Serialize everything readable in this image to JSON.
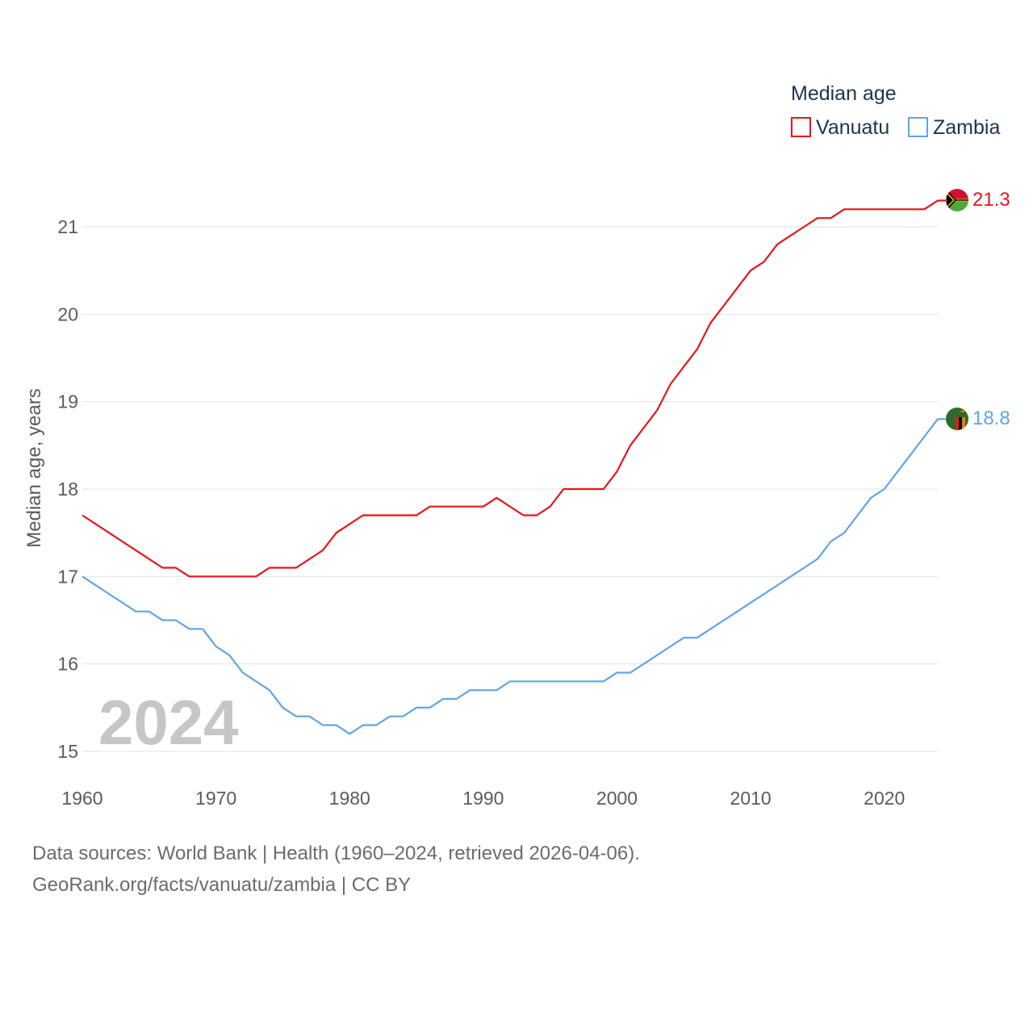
{
  "chart_data": {
    "type": "line",
    "legend_title": "Median age",
    "ylabel": "Median age, years",
    "xlabel": "",
    "xlim": [
      1960,
      2024
    ],
    "ylim": [
      15,
      21.3
    ],
    "x_ticks": [
      1960,
      1970,
      1980,
      1990,
      2000,
      2010,
      2020
    ],
    "y_ticks": [
      15,
      16,
      17,
      18,
      19,
      20,
      21
    ],
    "year_label": "2024",
    "x": [
      1960,
      1961,
      1962,
      1963,
      1964,
      1965,
      1966,
      1967,
      1968,
      1969,
      1970,
      1971,
      1972,
      1973,
      1974,
      1975,
      1976,
      1977,
      1978,
      1979,
      1980,
      1981,
      1982,
      1983,
      1984,
      1985,
      1986,
      1987,
      1988,
      1989,
      1990,
      1991,
      1992,
      1993,
      1994,
      1995,
      1996,
      1997,
      1998,
      1999,
      2000,
      2001,
      2002,
      2003,
      2004,
      2005,
      2006,
      2007,
      2008,
      2009,
      2010,
      2011,
      2012,
      2013,
      2014,
      2015,
      2016,
      2017,
      2018,
      2019,
      2020,
      2021,
      2022,
      2023,
      2024
    ],
    "series": [
      {
        "name": "Vanuatu",
        "color": "#e8151b",
        "end_label": "21.3",
        "values": [
          17.7,
          17.6,
          17.5,
          17.4,
          17.3,
          17.2,
          17.1,
          17.1,
          17.0,
          17.0,
          17.0,
          17.0,
          17.0,
          17.0,
          17.1,
          17.1,
          17.1,
          17.2,
          17.3,
          17.5,
          17.6,
          17.7,
          17.7,
          17.7,
          17.7,
          17.7,
          17.8,
          17.8,
          17.8,
          17.8,
          17.8,
          17.9,
          17.8,
          17.7,
          17.7,
          17.8,
          18.0,
          18.0,
          18.0,
          18.0,
          18.2,
          18.5,
          18.7,
          18.9,
          19.2,
          19.4,
          19.6,
          19.9,
          20.1,
          20.3,
          20.5,
          20.6,
          20.8,
          20.9,
          21.0,
          21.1,
          21.1,
          21.2,
          21.2,
          21.2,
          21.2,
          21.2,
          21.2,
          21.2,
          21.3
        ]
      },
      {
        "name": "Zambia",
        "color": "#5fa5e6",
        "end_label": "18.8",
        "values": [
          17.0,
          16.9,
          16.8,
          16.7,
          16.6,
          16.6,
          16.5,
          16.5,
          16.4,
          16.4,
          16.2,
          16.1,
          15.9,
          15.8,
          15.7,
          15.5,
          15.4,
          15.4,
          15.3,
          15.3,
          15.2,
          15.3,
          15.3,
          15.4,
          15.4,
          15.5,
          15.5,
          15.6,
          15.6,
          15.7,
          15.7,
          15.7,
          15.8,
          15.8,
          15.8,
          15.8,
          15.8,
          15.8,
          15.8,
          15.8,
          15.9,
          15.9,
          16.0,
          16.1,
          16.2,
          16.3,
          16.3,
          16.4,
          16.5,
          16.6,
          16.7,
          16.8,
          16.9,
          17.0,
          17.1,
          17.2,
          17.4,
          17.5,
          17.7,
          17.9,
          18.0,
          18.2,
          18.4,
          18.6,
          18.8
        ]
      }
    ],
    "flag_icons": [
      "vanuatu-flag-icon",
      "zambia-flag-icon"
    ]
  },
  "footer": {
    "line1": "Data sources: World Bank | Health (1960–2024, retrieved 2026-04-06).",
    "line2": "GeoRank.org/facts/vanuatu/zambia | CC BY"
  }
}
